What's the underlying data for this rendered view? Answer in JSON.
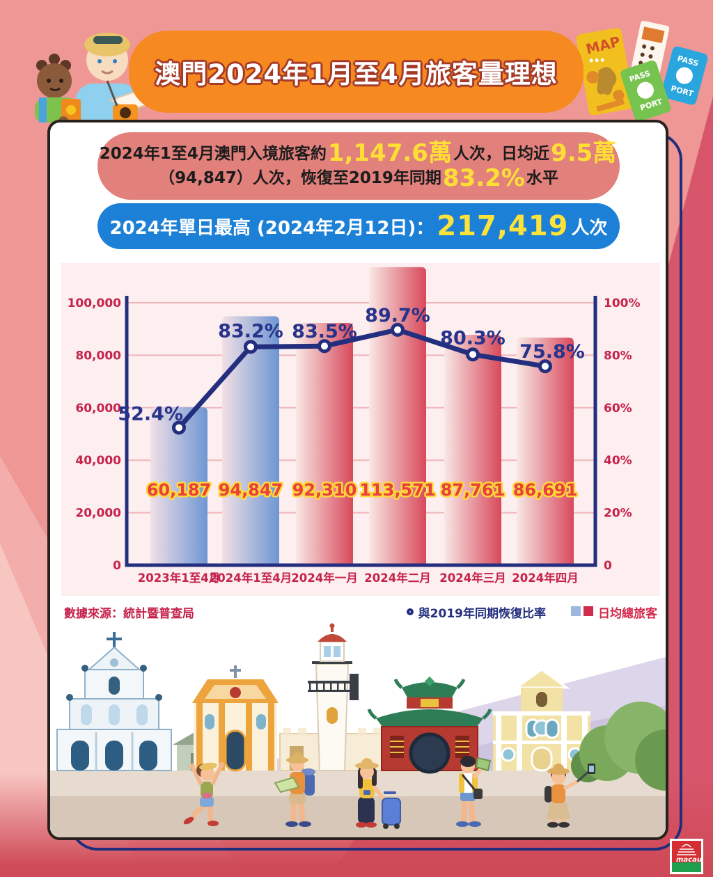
{
  "banner": {
    "title": "澳門2024年1月至4月旅客量理想"
  },
  "decor": {
    "map": "MAP",
    "pass": "PASS",
    "port": "PORT"
  },
  "summary": {
    "line1_prefix": "2024年1至4月澳門入境旅客約",
    "line1_big1": "1,147.6萬",
    "line1_mid": "人次，日均近",
    "line1_big2": "9.5萬",
    "line2_prefix": "（94,847）人次，恢復至2019年同期",
    "line2_big": "83.2%",
    "line2_suffix": "水平"
  },
  "peak": {
    "label": "2024年單日最高 (2024年2月12日)：",
    "value": "217,419",
    "suffix": "人次"
  },
  "chart_data": {
    "type": "bar+line",
    "categories": [
      "2023年1至4月",
      "2024年1至4月",
      "2024年一月",
      "2024年二月",
      "2024年三月",
      "2024年四月"
    ],
    "series": [
      {
        "name": "日均總旅客",
        "type": "bar",
        "axis": "left",
        "values": [
          60187,
          94847,
          92310,
          113571,
          87761,
          86691
        ],
        "value_labels": [
          "60,187",
          "94,847",
          "92,310",
          "113,571",
          "87,761",
          "86,691"
        ],
        "bar_palette": [
          "blue",
          "blue",
          "red",
          "red",
          "red",
          "red"
        ]
      },
      {
        "name": "與2019年同期恢復比率",
        "type": "line",
        "axis": "right",
        "values": [
          52.4,
          83.2,
          83.5,
          89.7,
          80.3,
          75.8
        ],
        "point_labels": [
          "52.4%",
          "83.2%",
          "83.5%",
          "89.7%",
          "80.3%",
          "75.8%"
        ]
      }
    ],
    "left_axis": {
      "ticks": [
        "0",
        "20,000",
        "40,000",
        "60,000",
        "80,000",
        "100,000"
      ],
      "min": 0,
      "max": 100000
    },
    "right_axis": {
      "ticks": [
        "0",
        "20%",
        "40%",
        "60%",
        "80%",
        "100%"
      ],
      "min": 0,
      "max": 100
    },
    "grid": true,
    "legend_position": "bottom-right",
    "colors": {
      "panel_bg": "#fdeef0",
      "grid": "#efb6ba",
      "axis": "#232f7e",
      "line": "#232f7e",
      "tick_text": "#c5234a",
      "value_label": "#e8403c",
      "value_label_outline": "#ffd93b",
      "point_label": "#27338b",
      "bar_blue_start": "#f2e0e6",
      "bar_blue_end": "#6e96d2",
      "bar_red_start": "#f8e8e5",
      "bar_red_end": "#d8495b"
    }
  },
  "legend": {
    "source": "數據來源：統計暨普查局",
    "line_label": "與2019年同期恢復比率",
    "bar_label": "日均總旅客"
  },
  "logo": {
    "text": "macau"
  }
}
